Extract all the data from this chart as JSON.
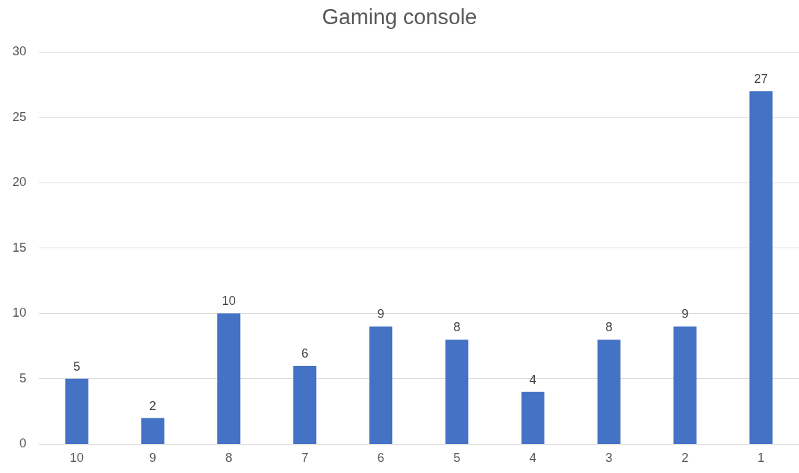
{
  "chart_data": {
    "type": "bar",
    "title": "Gaming console",
    "categories": [
      "10",
      "9",
      "8",
      "7",
      "6",
      "5",
      "4",
      "3",
      "2",
      "1"
    ],
    "values": [
      5,
      2,
      10,
      6,
      9,
      8,
      4,
      8,
      9,
      27
    ],
    "color": "#4472c4",
    "ylim": [
      0,
      30
    ],
    "yticks": [
      0,
      5,
      10,
      15,
      20,
      25,
      30
    ],
    "grid": "y",
    "data_labels": true,
    "legend": false
  }
}
